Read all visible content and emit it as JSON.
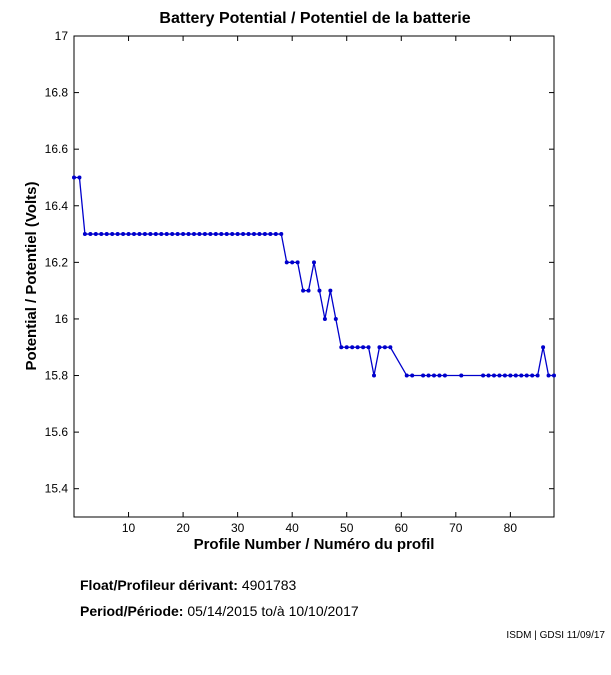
{
  "chart_data": {
    "type": "line",
    "title": "Battery Potential / Potentiel de la batterie",
    "xlabel": "Profile Number / Numéro du profil",
    "ylabel": "Potential / Potentiel (Volts)",
    "xlim": [
      0,
      88
    ],
    "ylim": [
      15.3,
      17
    ],
    "xticks": [
      10,
      20,
      30,
      40,
      50,
      60,
      70,
      80
    ],
    "yticks": [
      15.4,
      15.6,
      15.8,
      16,
      16.2,
      16.4,
      16.6,
      16.8,
      17
    ],
    "grid": false,
    "color": "#0000cc",
    "series": [
      {
        "x": [
          0,
          1,
          2,
          3,
          4,
          5,
          6,
          7,
          8,
          9,
          10,
          11,
          12,
          13,
          14,
          15,
          16,
          17,
          18,
          19,
          20,
          21,
          22,
          23,
          24,
          25,
          26,
          27,
          28,
          29,
          30,
          31,
          32,
          33,
          34,
          35,
          36,
          37,
          38,
          39,
          40,
          41,
          42,
          43,
          44,
          45,
          46,
          47,
          48,
          49,
          50,
          51,
          52,
          53,
          54,
          55,
          56,
          57,
          58,
          61,
          62,
          64,
          65,
          66,
          67,
          68,
          71,
          75,
          76,
          77,
          78,
          79,
          80,
          81,
          82,
          83,
          84,
          85,
          86,
          87,
          88
        ],
        "y": [
          16.5,
          16.5,
          16.3,
          16.3,
          16.3,
          16.3,
          16.3,
          16.3,
          16.3,
          16.3,
          16.3,
          16.3,
          16.3,
          16.3,
          16.3,
          16.3,
          16.3,
          16.3,
          16.3,
          16.3,
          16.3,
          16.3,
          16.3,
          16.3,
          16.3,
          16.3,
          16.3,
          16.3,
          16.3,
          16.3,
          16.3,
          16.3,
          16.3,
          16.3,
          16.3,
          16.3,
          16.3,
          16.3,
          16.3,
          16.2,
          16.2,
          16.2,
          16.1,
          16.1,
          16.2,
          16.1,
          16.0,
          16.1,
          16.0,
          15.9,
          15.9,
          15.9,
          15.9,
          15.9,
          15.9,
          15.8,
          15.9,
          15.9,
          15.9,
          15.8,
          15.8,
          15.8,
          15.8,
          15.8,
          15.8,
          15.8,
          15.8,
          15.8,
          15.8,
          15.8,
          15.8,
          15.8,
          15.8,
          15.8,
          15.8,
          15.8,
          15.8,
          15.8,
          15.9,
          15.8,
          15.8
        ]
      }
    ]
  },
  "info": {
    "float_label": "Float/Profileur dérivant:",
    "float_value": "4901783",
    "period_label": "Period/Période:",
    "period_start": "05/14/2015",
    "period_sep": "to/à",
    "period_end": "10/10/2017"
  },
  "credit": "ISDM | GDSI 11/09/17"
}
